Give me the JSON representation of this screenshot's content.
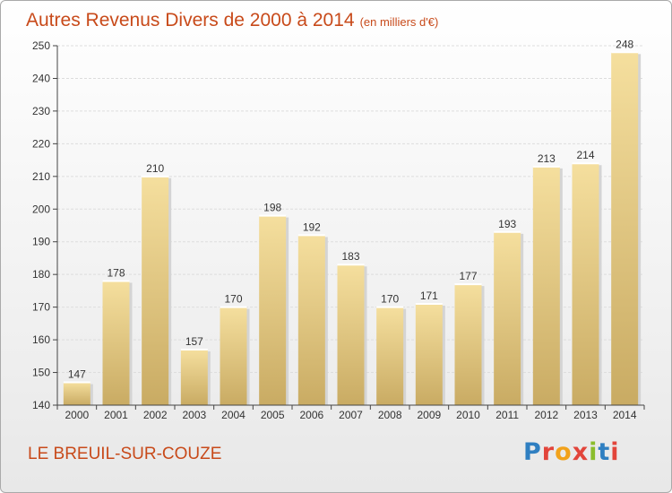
{
  "title": "Autres Revenus Divers de 2000 à 2014",
  "subtitle": "(en milliers d'€)",
  "place": "LE BREUIL-SUR-COUZE",
  "logo": "Proxiti",
  "colors": {
    "title": "#c84a1a",
    "bar_top": "#f5df9e",
    "bar_bottom": "#c9ab63",
    "grid": "#dddddd",
    "axis": "#444444"
  },
  "chart_data": {
    "type": "bar",
    "title": "Autres Revenus Divers de 2000 à 2014",
    "xlabel": "",
    "ylabel": "",
    "ylim": [
      140,
      250
    ],
    "yticks": [
      140,
      150,
      160,
      170,
      180,
      190,
      200,
      210,
      220,
      230,
      240,
      250
    ],
    "grid": true,
    "categories": [
      "2000",
      "2001",
      "2002",
      "2003",
      "2004",
      "2005",
      "2006",
      "2007",
      "2008",
      "2009",
      "2010",
      "2011",
      "2012",
      "2013",
      "2014"
    ],
    "values": [
      147,
      178,
      210,
      157,
      170,
      198,
      192,
      183,
      170,
      171,
      177,
      193,
      213,
      214,
      248
    ]
  }
}
